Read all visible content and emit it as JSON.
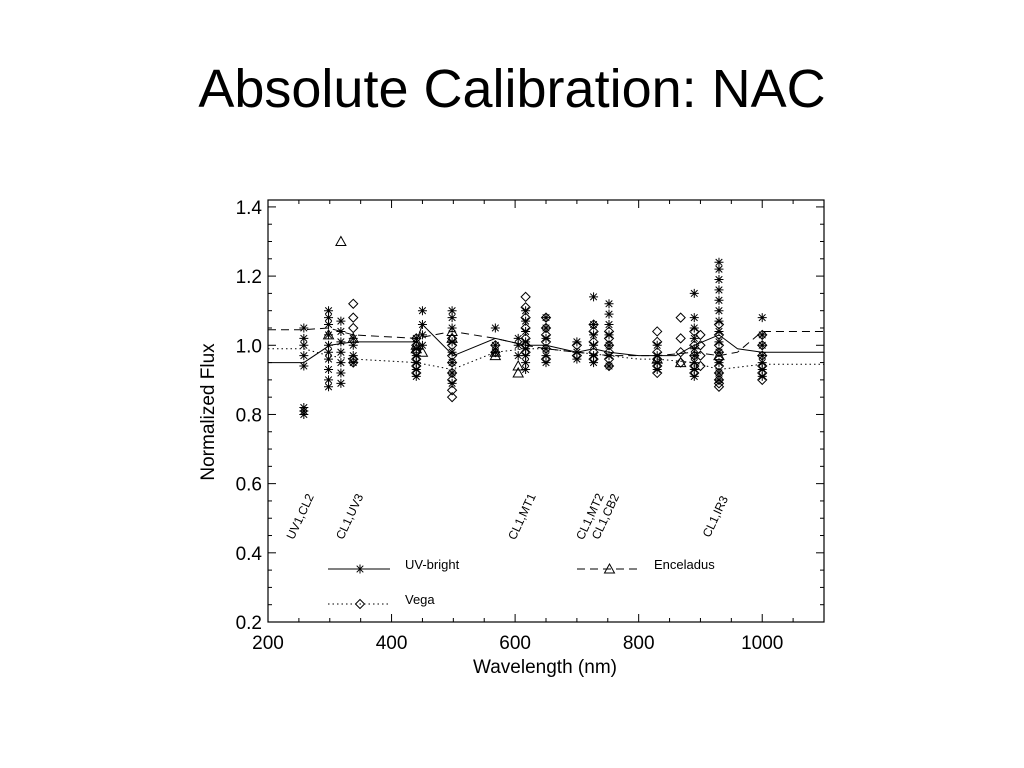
{
  "slide": {
    "title": "Absolute Calibration: NAC"
  },
  "chart_data": {
    "type": "scatter",
    "title": "",
    "xlabel": "Wavelength (nm)",
    "ylabel": "Normalized Flux",
    "xlim": [
      200,
      1100
    ],
    "ylim": [
      0.2,
      1.42
    ],
    "xticks": [
      200,
      400,
      600,
      800,
      1000
    ],
    "yticks": [
      0.2,
      0.4,
      0.6,
      0.8,
      1.0,
      1.2,
      1.4
    ],
    "xtick_labels": [
      "200",
      "400",
      "600",
      "800",
      "1000"
    ],
    "ytick_labels": [
      "0.2",
      "0.4",
      "0.6",
      "0.8",
      "1.0",
      "1.2",
      "1.4"
    ],
    "grid": false,
    "legend": [
      {
        "label": "UV-bright",
        "line": "solid",
        "marker": "asterisk",
        "position": "lower-left"
      },
      {
        "label": "Vega",
        "line": "dotted",
        "marker": "diamond",
        "position": "lower-left"
      },
      {
        "label": "Enceladus",
        "line": "dashed",
        "marker": "triangle",
        "position": "lower-right"
      }
    ],
    "filter_labels": [
      {
        "text": "UV1,CL2",
        "x": 258
      },
      {
        "text": "CL1,UV3",
        "x": 338
      },
      {
        "text": "CL1,MT1",
        "x": 617
      },
      {
        "text": "CL1,MT2",
        "x": 727
      },
      {
        "text": "CL1,CB2",
        "x": 752
      },
      {
        "text": "CL1,IR3",
        "x": 930
      }
    ],
    "series": [
      {
        "name": "UV-bright",
        "line": "solid",
        "marker": "asterisk",
        "line_x": [
          200,
          258,
          300,
          338,
          440,
          450,
          500,
          568,
          617,
          650,
          700,
          727,
          752,
          800,
          830,
          860,
          890,
          930,
          960,
          1000,
          1100
        ],
        "line_y": [
          0.95,
          0.95,
          1.0,
          1.01,
          1.01,
          1.06,
          0.97,
          1.02,
          1.0,
          1.0,
          0.98,
          0.99,
          0.98,
          0.97,
          0.97,
          0.97,
          1.0,
          1.03,
          0.99,
          0.98,
          0.98
        ],
        "x": [
          258,
          258,
          258,
          258,
          258,
          258,
          258,
          258,
          298,
          298,
          298,
          298,
          298,
          298,
          298,
          298,
          298,
          298,
          318,
          318,
          318,
          318,
          318,
          318,
          318,
          338,
          338,
          338,
          338,
          440,
          440,
          440,
          440,
          440,
          440,
          450,
          450,
          450,
          450,
          498,
          498,
          498,
          498,
          498,
          498,
          498,
          498,
          568,
          568,
          568,
          605,
          605,
          605,
          617,
          617,
          617,
          617,
          617,
          617,
          617,
          617,
          650,
          650,
          650,
          650,
          650,
          650,
          700,
          700,
          700,
          727,
          727,
          727,
          727,
          727,
          727,
          752,
          752,
          752,
          752,
          752,
          752,
          752,
          830,
          830,
          830,
          830,
          890,
          890,
          890,
          890,
          890,
          890,
          890,
          890,
          890,
          930,
          930,
          930,
          930,
          930,
          930,
          930,
          930,
          930,
          930,
          930,
          930,
          930,
          1000,
          1000,
          1000,
          1000,
          1000,
          1000,
          1000
        ],
        "y": [
          1.05,
          1.02,
          1.0,
          0.97,
          0.94,
          0.82,
          0.81,
          0.8,
          1.1,
          1.06,
          1.03,
          1.0,
          0.98,
          0.96,
          0.93,
          0.9,
          0.88,
          1.08,
          1.07,
          1.04,
          1.01,
          0.98,
          0.95,
          0.92,
          0.89,
          1.02,
          1.0,
          0.97,
          0.95,
          1.02,
          0.99,
          0.97,
          0.95,
          0.93,
          0.91,
          1.1,
          1.06,
          1.03,
          1.0,
          1.1,
          1.08,
          1.05,
          1.01,
          0.98,
          0.95,
          0.92,
          0.89,
          1.05,
          1.0,
          0.98,
          1.02,
          1.0,
          0.97,
          1.1,
          1.07,
          1.04,
          1.01,
          0.99,
          0.97,
          0.95,
          0.93,
          1.08,
          1.05,
          1.02,
          0.99,
          0.97,
          0.95,
          1.01,
          0.98,
          0.96,
          1.14,
          1.06,
          1.03,
          1.0,
          0.97,
          0.95,
          1.12,
          1.09,
          1.06,
          1.03,
          1.0,
          0.97,
          0.94,
          1.0,
          0.97,
          0.95,
          0.93,
          1.15,
          1.08,
          1.05,
          1.02,
          0.99,
          0.97,
          0.95,
          0.93,
          0.91,
          1.24,
          1.22,
          1.19,
          1.16,
          1.13,
          1.1,
          1.07,
          1.04,
          1.01,
          0.98,
          0.95,
          0.92,
          0.9,
          1.08,
          1.03,
          1.0,
          0.97,
          0.95,
          0.93,
          0.91
        ]
      },
      {
        "name": "Vega",
        "line": "dotted",
        "marker": "diamond",
        "line_x": [
          200,
          258,
          298,
          338,
          440,
          498,
          568,
          617,
          650,
          700,
          752,
          800,
          830,
          890,
          930,
          1000,
          1100
        ],
        "line_y": [
          0.99,
          0.99,
          0.97,
          0.96,
          0.95,
          0.93,
          0.98,
          0.99,
          0.99,
          0.98,
          0.97,
          0.96,
          0.96,
          0.95,
          0.93,
          0.945,
          0.945
        ],
        "x": [
          338,
          338,
          338,
          338,
          338,
          440,
          440,
          440,
          440,
          440,
          440,
          498,
          498,
          498,
          498,
          498,
          498,
          498,
          498,
          568,
          568,
          617,
          617,
          617,
          617,
          617,
          617,
          617,
          650,
          650,
          650,
          650,
          650,
          650,
          700,
          700,
          727,
          727,
          727,
          727,
          727,
          752,
          752,
          752,
          752,
          752,
          752,
          830,
          830,
          830,
          830,
          830,
          830,
          868,
          868,
          868,
          868,
          890,
          890,
          890,
          890,
          890,
          900,
          900,
          900,
          900,
          930,
          930,
          930,
          930,
          930,
          930,
          930,
          930,
          930,
          930,
          1000,
          1000,
          1000,
          1000,
          1000,
          1000
        ],
        "y": [
          1.12,
          1.08,
          1.05,
          0.96,
          0.95,
          1.02,
          1.0,
          0.98,
          0.96,
          0.94,
          0.92,
          1.02,
          1.0,
          0.97,
          0.95,
          0.92,
          0.9,
          0.87,
          0.85,
          1.0,
          0.98,
          1.14,
          1.11,
          1.08,
          1.05,
          1.02,
          1.0,
          0.98,
          1.08,
          1.05,
          1.03,
          1.01,
          0.99,
          0.96,
          1.0,
          0.97,
          1.06,
          1.04,
          1.01,
          0.98,
          0.96,
          1.04,
          1.02,
          1.0,
          0.98,
          0.96,
          0.94,
          1.04,
          1.01,
          0.98,
          0.96,
          0.94,
          0.92,
          1.08,
          1.02,
          0.98,
          0.95,
          1.04,
          1.0,
          0.97,
          0.94,
          0.92,
          1.03,
          1.0,
          0.97,
          0.94,
          1.06,
          1.03,
          1.0,
          0.98,
          0.96,
          0.94,
          0.92,
          0.9,
          0.89,
          0.88,
          1.03,
          1.0,
          0.97,
          0.94,
          0.92,
          0.9
        ]
      },
      {
        "name": "Enceladus",
        "line": "dashed",
        "marker": "triangle",
        "line_x": [
          200,
          258,
          298,
          338,
          440,
          498,
          568,
          617,
          650,
          700,
          752,
          800,
          830,
          890,
          930,
          960,
          1000,
          1100
        ],
        "line_y": [
          1.045,
          1.045,
          1.05,
          1.03,
          1.02,
          1.04,
          1.02,
          1.0,
          0.99,
          0.98,
          0.97,
          0.97,
          0.97,
          0.98,
          0.97,
          0.98,
          1.04,
          1.04
        ],
        "x": [
          318,
          298,
          338,
          440,
          440,
          450,
          498,
          498,
          568,
          568,
          605,
          605,
          830,
          868,
          930
        ],
        "y": [
          1.3,
          1.03,
          1.02,
          1.0,
          0.99,
          0.98,
          1.04,
          1.02,
          0.98,
          0.97,
          0.92,
          0.94,
          0.96,
          0.95,
          0.97
        ]
      }
    ]
  }
}
